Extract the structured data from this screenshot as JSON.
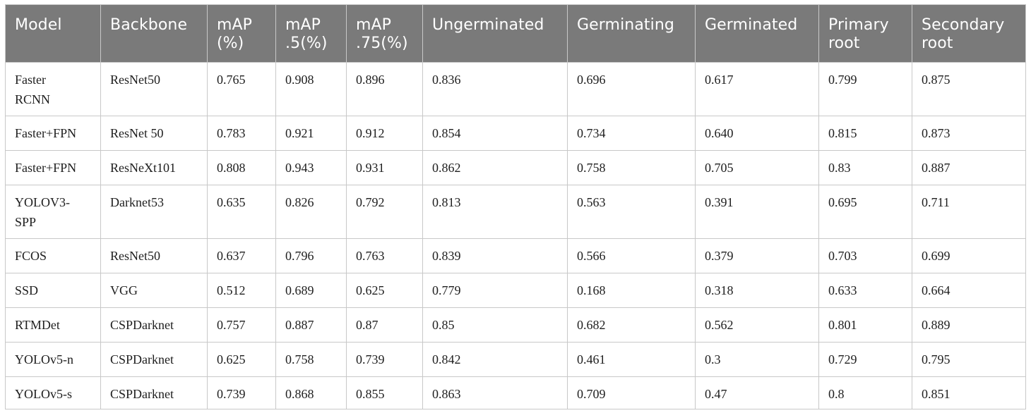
{
  "table": {
    "columns": [
      [
        "Model"
      ],
      [
        "Backbone"
      ],
      [
        "mAP",
        "(%)"
      ],
      [
        "mAP",
        ".5(%)"
      ],
      [
        "mAP",
        ".75(%)"
      ],
      [
        "Ungerminated"
      ],
      [
        "Germinating"
      ],
      [
        "Germinated"
      ],
      [
        "Primary",
        "root"
      ],
      [
        "Secondary",
        "root"
      ]
    ],
    "rows": [
      {
        "model": [
          "Faster",
          "RCNN"
        ],
        "cells": [
          "ResNet50",
          "0.765",
          "0.908",
          "0.896",
          "0.836",
          "0.696",
          "0.617",
          "0.799",
          "0.875"
        ]
      },
      {
        "model": [
          "Faster+FPN"
        ],
        "cells": [
          "ResNet 50",
          "0.783",
          "0.921",
          "0.912",
          "0.854",
          "0.734",
          "0.640",
          "0.815",
          "0.873"
        ]
      },
      {
        "model": [
          "Faster+FPN"
        ],
        "cells": [
          "ResNeXt101",
          "0.808",
          "0.943",
          "0.931",
          "0.862",
          "0.758",
          "0.705",
          "0.83",
          "0.887"
        ]
      },
      {
        "model": [
          "YOLOV3-",
          "SPP"
        ],
        "cells": [
          "Darknet53",
          "0.635",
          "0.826",
          "0.792",
          "0.813",
          "0.563",
          "0.391",
          "0.695",
          "0.711"
        ]
      },
      {
        "model": [
          "FCOS"
        ],
        "cells": [
          "ResNet50",
          "0.637",
          "0.796",
          "0.763",
          "0.839",
          "0.566",
          "0.379",
          "0.703",
          "0.699"
        ]
      },
      {
        "model": [
          "SSD"
        ],
        "cells": [
          "VGG",
          "0.512",
          "0.689",
          "0.625",
          "0.779",
          "0.168",
          "0.318",
          "0.633",
          "0.664"
        ]
      },
      {
        "model": [
          "RTMDet"
        ],
        "cells": [
          "CSPDarknet",
          "0.757",
          "0.887",
          "0.87",
          "0.85",
          "0.682",
          "0.562",
          "0.801",
          "0.889"
        ]
      },
      {
        "model": [
          "YOLOv5-n"
        ],
        "cells": [
          "CSPDarknet",
          "0.625",
          "0.758",
          "0.739",
          "0.842",
          "0.461",
          "0.3",
          "0.729",
          "0.795"
        ]
      },
      {
        "model": [
          "YOLOv5-s"
        ],
        "cells": [
          "CSPDarknet",
          "0.739",
          "0.868",
          "0.855",
          "0.863",
          "0.709",
          "0.47",
          "0.8",
          "0.851"
        ]
      }
    ]
  }
}
